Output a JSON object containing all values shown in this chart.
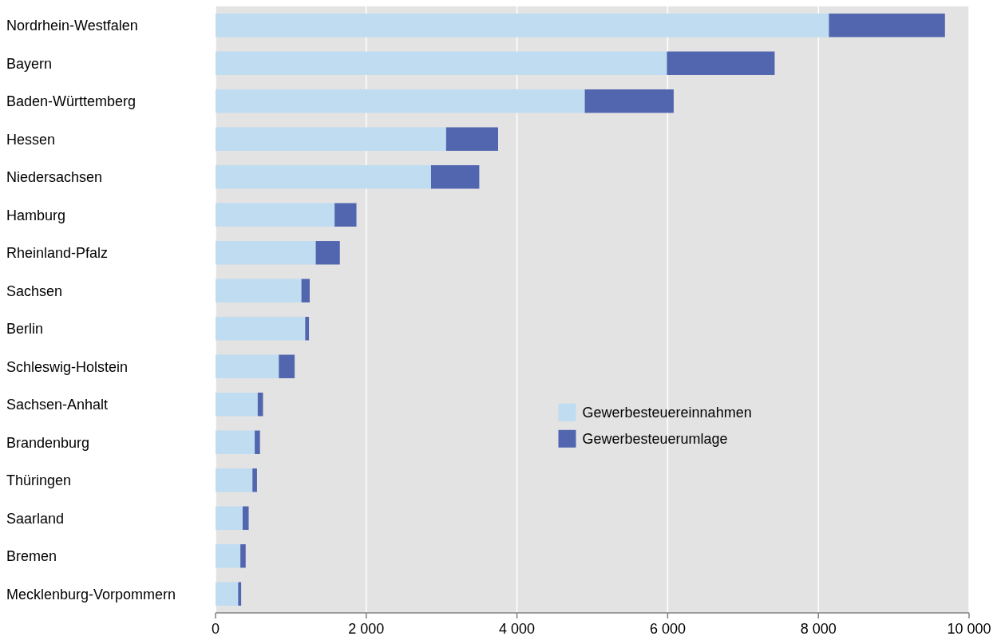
{
  "chart_data": {
    "type": "bar",
    "orientation": "horizontal",
    "stacked": true,
    "categories": [
      "Nordrhein-Westfalen",
      "Bayern",
      "Baden-Württemberg",
      "Hessen",
      "Niedersachsen",
      "Hamburg",
      "Rheinland-Pfalz",
      "Sachsen",
      "Berlin",
      "Schleswig-Holstein",
      "Sachsen-Anhalt",
      "Brandenburg",
      "Thüringen",
      "Saarland",
      "Bremen",
      "Mecklenburg-Vorpommern"
    ],
    "series": [
      {
        "name": "Gewerbesteuereinnahmen",
        "color": "#bfdcf1",
        "values": [
          8140,
          5990,
          4900,
          3060,
          2860,
          1580,
          1330,
          1140,
          1190,
          840,
          560,
          520,
          490,
          360,
          330,
          300
        ]
      },
      {
        "name": "Gewerbesteuerumlage",
        "color": "#5266b0",
        "values": [
          1540,
          1430,
          1180,
          690,
          640,
          290,
          320,
          110,
          50,
          210,
          70,
          70,
          60,
          80,
          70,
          40
        ]
      }
    ],
    "xlim": [
      0,
      10000
    ],
    "xticks": [
      {
        "value": 0,
        "label": "0"
      },
      {
        "value": 2000,
        "label": "2 000"
      },
      {
        "value": 4000,
        "label": "4 000"
      },
      {
        "value": 6000,
        "label": "6 000"
      },
      {
        "value": 8000,
        "label": "8 000"
      },
      {
        "value": 10000,
        "label": "10 000"
      }
    ],
    "grid": "x",
    "legend": "right"
  }
}
